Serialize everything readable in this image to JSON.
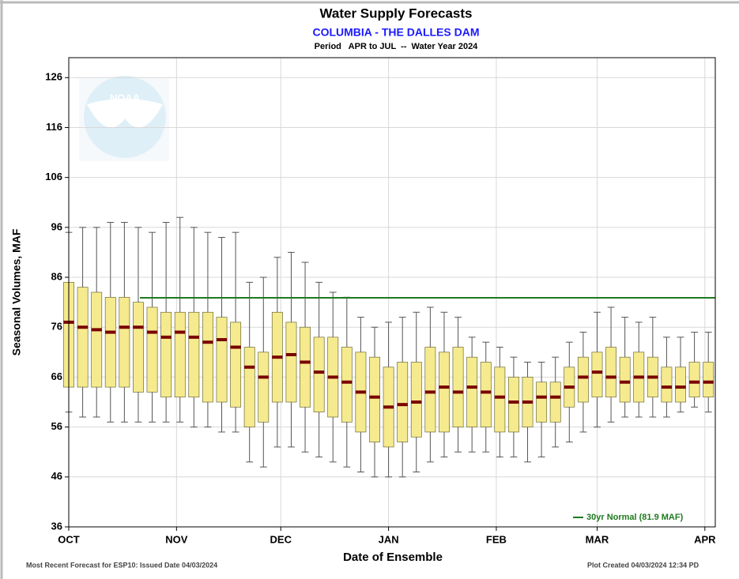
{
  "chart_data": {
    "type": "box",
    "title": "Water Supply Forecasts",
    "subtitle": "COLUMBIA - THE DALLES DAM",
    "period": "Period   APR to JUL  --  Water Year 2024",
    "ylabel": "Seasonal Volumes, MAF",
    "xlabel": "Date of Ensemble",
    "footer_left": "Most Recent Forecast for ESP10: Issued Date 04/03/2024",
    "footer_right": "Plot Created 04/03/2024 12:34 PD",
    "logo": "NOAA",
    "xlim": [
      0,
      186
    ],
    "xticks": [
      {
        "value": 0,
        "label": "OCT"
      },
      {
        "value": 31,
        "label": "NOV"
      },
      {
        "value": 61,
        "label": "DEC"
      },
      {
        "value": 92,
        "label": "JAN"
      },
      {
        "value": 123,
        "label": "FEB"
      },
      {
        "value": 152,
        "label": "MAR"
      },
      {
        "value": 183,
        "label": "APR"
      }
    ],
    "ylim": [
      36,
      130
    ],
    "yticks": [
      36,
      46,
      56,
      66,
      76,
      86,
      96,
      106,
      116,
      126
    ],
    "grid": true,
    "box_color": "#f6ea8e",
    "median_color": "#7a0000",
    "whisker_color": "#555555",
    "x": [
      0,
      4,
      8,
      12,
      16,
      20,
      24,
      28,
      32,
      36,
      40,
      44,
      48,
      52,
      56,
      60,
      64,
      68,
      72,
      76,
      80,
      84,
      88,
      92,
      96,
      100,
      104,
      108,
      112,
      116,
      120,
      124,
      128,
      132,
      136,
      140,
      144,
      148,
      152,
      156,
      160,
      164,
      168,
      172,
      176,
      180,
      184
    ],
    "low": [
      59,
      58,
      58,
      57,
      57,
      57,
      57,
      57,
      57,
      56,
      56,
      55,
      55,
      49,
      48,
      52,
      52,
      51,
      50,
      49,
      48,
      47,
      46,
      46,
      46,
      47,
      49,
      50,
      51,
      51,
      51,
      50,
      50,
      49,
      50,
      52,
      53,
      55,
      56,
      57,
      58,
      58,
      58,
      58,
      59,
      60,
      59
    ],
    "q1": [
      64,
      64,
      64,
      64,
      64,
      63,
      63,
      62,
      62,
      62,
      61,
      61,
      60,
      56,
      57,
      61,
      61,
      60,
      59,
      58,
      57,
      55,
      53,
      52,
      53,
      54,
      55,
      55,
      56,
      56,
      56,
      55,
      55,
      56,
      57,
      57,
      60,
      61,
      62,
      62,
      61,
      61,
      62,
      61,
      61,
      62,
      62
    ],
    "median": [
      77,
      76,
      75.5,
      75,
      76,
      76,
      75,
      74,
      75,
      74,
      73,
      73.5,
      72,
      68,
      66,
      70,
      70.5,
      69,
      67,
      66,
      65,
      63,
      62,
      60,
      60.5,
      61,
      63,
      64,
      63,
      64,
      63,
      62,
      61,
      61,
      62,
      62,
      64,
      66,
      67,
      66,
      65,
      66,
      66,
      64,
      64,
      65,
      65
    ],
    "q3": [
      85,
      84,
      83,
      82,
      82,
      81,
      80,
      79,
      79,
      79,
      79,
      78,
      77,
      72,
      71,
      79,
      77,
      76,
      74,
      74,
      72,
      71,
      70,
      68,
      69,
      69,
      72,
      71,
      72,
      70,
      69,
      68,
      66,
      66,
      65,
      65,
      68,
      70,
      71,
      72,
      70,
      71,
      70,
      68,
      68,
      69,
      69
    ],
    "high": [
      95,
      96,
      96,
      97,
      97,
      96,
      95,
      97,
      98,
      96,
      95,
      94,
      95,
      85,
      86,
      90,
      91,
      89,
      85,
      83,
      82,
      78,
      76,
      77,
      78,
      79,
      80,
      79,
      78,
      74,
      73,
      72,
      70,
      69,
      69,
      70,
      73,
      75,
      79,
      80,
      78,
      77,
      78,
      74,
      74,
      75,
      75
    ],
    "reference_line": {
      "value": 81.9,
      "label": "30yr Normal (81.9 MAF)",
      "color": "#1e7a1e"
    }
  }
}
